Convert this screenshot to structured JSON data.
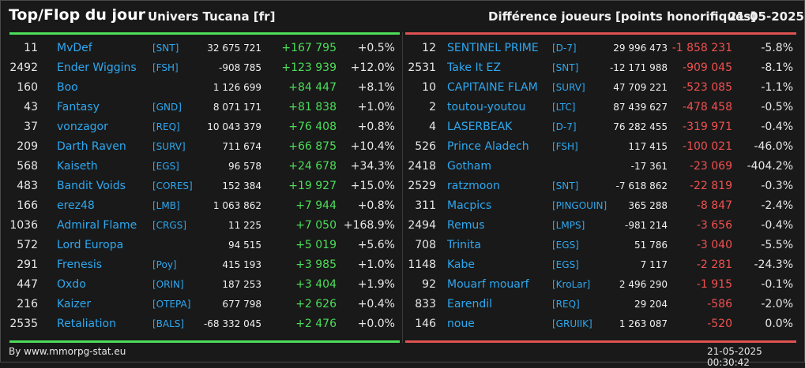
{
  "header": {
    "title": "Top/Flop du jour",
    "universe": "Univers Tucana [fr]",
    "metric": "Différence joueurs [points honorifiques]",
    "date": "21-05-2025"
  },
  "colors": {
    "top_accent": "#4ddd5a",
    "flop_accent": "#e05252",
    "link": "#2ea8f0",
    "background": "#191919"
  },
  "top": [
    {
      "rank": "11",
      "name": "MvDef",
      "alliance": "[SNT]",
      "points": "32 675 721",
      "diff": "+167 795",
      "pct": "+0.5%"
    },
    {
      "rank": "2492",
      "name": "Ender Wiggins",
      "alliance": "[FSH]",
      "points": "-908 785",
      "diff": "+123 939",
      "pct": "+12.0%"
    },
    {
      "rank": "160",
      "name": "Boo",
      "alliance": "",
      "points": "1 126 699",
      "diff": "+84 447",
      "pct": "+8.1%"
    },
    {
      "rank": "43",
      "name": "Fantasy",
      "alliance": "[GND]",
      "points": "8 071 171",
      "diff": "+81 838",
      "pct": "+1.0%"
    },
    {
      "rank": "37",
      "name": "vonzagor",
      "alliance": "[REQ]",
      "points": "10 043 379",
      "diff": "+76 408",
      "pct": "+0.8%"
    },
    {
      "rank": "209",
      "name": "Darth Raven",
      "alliance": "[SURV]",
      "points": "711 674",
      "diff": "+66 875",
      "pct": "+10.4%"
    },
    {
      "rank": "568",
      "name": "Kaiseth",
      "alliance": "[EGS]",
      "points": "96 578",
      "diff": "+24 678",
      "pct": "+34.3%"
    },
    {
      "rank": "483",
      "name": "Bandit Voids",
      "alliance": "[CORES]",
      "points": "152 384",
      "diff": "+19 927",
      "pct": "+15.0%"
    },
    {
      "rank": "166",
      "name": "erez48",
      "alliance": "[LMB]",
      "points": "1 063 862",
      "diff": "+7 944",
      "pct": "+0.8%"
    },
    {
      "rank": "1036",
      "name": "Admiral Flame",
      "alliance": "[CRGS]",
      "points": "11 225",
      "diff": "+7 050",
      "pct": "+168.9%"
    },
    {
      "rank": "572",
      "name": "Lord Europa",
      "alliance": "",
      "points": "94 515",
      "diff": "+5 019",
      "pct": "+5.6%"
    },
    {
      "rank": "291",
      "name": "Frenesis",
      "alliance": "[Poy]",
      "points": "415 193",
      "diff": "+3 985",
      "pct": "+1.0%"
    },
    {
      "rank": "447",
      "name": "Oxdo",
      "alliance": "[ORIN]",
      "points": "187 253",
      "diff": "+3 404",
      "pct": "+1.9%"
    },
    {
      "rank": "216",
      "name": "Kaizer",
      "alliance": "[OTEPA]",
      "points": "677 798",
      "diff": "+2 626",
      "pct": "+0.4%"
    },
    {
      "rank": "2535",
      "name": "Retaliation",
      "alliance": "[BALS]",
      "points": "-68 332 045",
      "diff": "+2 476",
      "pct": "+0.0%"
    }
  ],
  "flop": [
    {
      "rank": "12",
      "name": "SENTINEL PRIME",
      "alliance": "[D-7]",
      "points": "29 996 473",
      "diff": "-1 858 231",
      "pct": "-5.8%"
    },
    {
      "rank": "2531",
      "name": "Take It EZ",
      "alliance": "[SNT]",
      "points": "-12 171 988",
      "diff": "-909 045",
      "pct": "-8.1%"
    },
    {
      "rank": "10",
      "name": "CAPITAINE FLAM",
      "alliance": "[SURV]",
      "points": "47 709 221",
      "diff": "-523 085",
      "pct": "-1.1%"
    },
    {
      "rank": "2",
      "name": "toutou-youtou",
      "alliance": "[LTC]",
      "points": "87 439 627",
      "diff": "-478 458",
      "pct": "-0.5%"
    },
    {
      "rank": "4",
      "name": "LASERBEAK",
      "alliance": "[D-7]",
      "points": "76 282 455",
      "diff": "-319 971",
      "pct": "-0.4%"
    },
    {
      "rank": "526",
      "name": "Prince Aladech",
      "alliance": "[FSH]",
      "points": "117 415",
      "diff": "-100 021",
      "pct": "-46.0%"
    },
    {
      "rank": "2418",
      "name": "Gotham",
      "alliance": "",
      "points": "-17 361",
      "diff": "-23 069",
      "pct": "-404.2%"
    },
    {
      "rank": "2529",
      "name": "ratzmoon",
      "alliance": "[SNT]",
      "points": "-7 618 862",
      "diff": "-22 819",
      "pct": "-0.3%"
    },
    {
      "rank": "311",
      "name": "Macpics",
      "alliance": "[PINGOUIN]",
      "points": "365 288",
      "diff": "-8 847",
      "pct": "-2.4%"
    },
    {
      "rank": "2494",
      "name": "Remus",
      "alliance": "[LMPS]",
      "points": "-981 214",
      "diff": "-3 656",
      "pct": "-0.4%"
    },
    {
      "rank": "708",
      "name": "Trinita",
      "alliance": "[EGS]",
      "points": "51 786",
      "diff": "-3 040",
      "pct": "-5.5%"
    },
    {
      "rank": "1148",
      "name": "Kabe",
      "alliance": "[EGS]",
      "points": "7 117",
      "diff": "-2 281",
      "pct": "-24.3%"
    },
    {
      "rank": "92",
      "name": "Mouarf mouarf",
      "alliance": "[KroLar]",
      "points": "2 496 290",
      "diff": "-1 915",
      "pct": "-0.1%"
    },
    {
      "rank": "833",
      "name": "Earendil",
      "alliance": "[REQ]",
      "points": "29 204",
      "diff": "-586",
      "pct": "-2.0%"
    },
    {
      "rank": "146",
      "name": "noue",
      "alliance": "[GRUIIK]",
      "points": "1 263 087",
      "diff": "-520",
      "pct": "0.0%"
    }
  ],
  "footer": {
    "source": "By www.mmorpg-stat.eu",
    "timestamp": "21-05-2025 00:30:42"
  }
}
